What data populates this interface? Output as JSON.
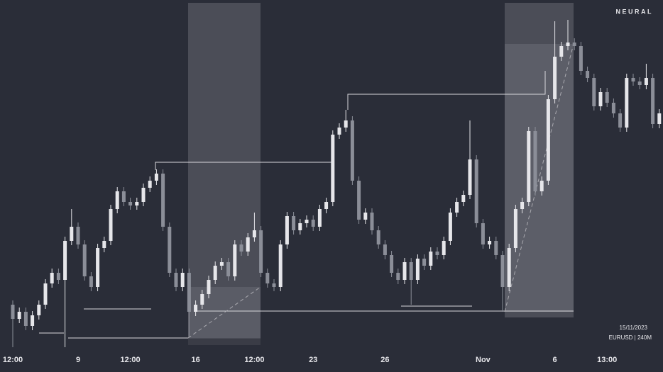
{
  "chart_data": {
    "type": "candlestick",
    "watermark": "NEURAL",
    "date": "15/11/2023",
    "symbol": "EURUSD | 240M",
    "up_color": "#e6e6ea",
    "down_color": "#8b8e98",
    "ylim": [
      1.04,
      1.09
    ],
    "categories": [
      "12:00",
      null,
      null,
      null,
      null,
      null,
      null,
      null,
      null,
      null,
      "9",
      null,
      null,
      null,
      null,
      null,
      null,
      null,
      "12:00",
      null,
      null,
      null,
      null,
      null,
      null,
      null,
      null,
      null,
      "16",
      null,
      null,
      null,
      null,
      null,
      null,
      null,
      null,
      "12:00",
      null,
      null,
      null,
      null,
      null,
      null,
      null,
      null,
      "23",
      null,
      null,
      null,
      null,
      null,
      null,
      null,
      null,
      null,
      null,
      "26",
      null,
      null,
      null,
      null,
      null,
      null,
      null,
      null,
      null,
      null,
      null,
      null,
      null,
      null,
      "Nov",
      null,
      null,
      null,
      null,
      null,
      null,
      null,
      null,
      null,
      null,
      "6",
      null,
      null,
      null,
      null,
      null,
      null,
      null,
      "13:00",
      null,
      null,
      null,
      null,
      null,
      null,
      null,
      null
    ],
    "open": [
      1.047,
      1.045,
      1.046,
      1.044,
      1.0455,
      1.047,
      1.05,
      1.0515,
      1.0505,
      1.056,
      1.058,
      1.0555,
      1.051,
      1.0495,
      1.055,
      1.056,
      1.0605,
      1.063,
      1.0615,
      1.061,
      1.0615,
      1.0635,
      1.0645,
      1.0655,
      1.058,
      1.0515,
      1.0495,
      1.0515,
      1.046,
      1.047,
      1.0485,
      1.0505,
      1.0525,
      1.053,
      1.051,
      1.0555,
      1.0545,
      1.0565,
      1.0575,
      1.0515,
      1.05,
      1.0495,
      1.0555,
      1.0595,
      1.0575,
      1.0585,
      1.059,
      1.058,
      1.0605,
      1.0615,
      1.071,
      1.072,
      1.073,
      1.0645,
      1.059,
      1.06,
      1.0575,
      1.0555,
      1.054,
      1.0515,
      1.0505,
      1.053,
      1.0505,
      1.0535,
      1.0525,
      1.0545,
      1.054,
      1.056,
      1.06,
      1.0615,
      1.0625,
      1.0675,
      1.0585,
      1.0555,
      1.056,
      1.054,
      1.0495,
      1.055,
      1.0605,
      1.0615,
      1.0715,
      1.063,
      1.0645,
      1.076,
      1.082,
      1.0835,
      1.084,
      1.0835,
      1.08,
      1.079,
      1.075,
      1.077,
      1.0755,
      1.074,
      1.072,
      1.079,
      1.0785,
      1.078,
      1.079,
      1.0725
    ],
    "close": [
      1.045,
      1.046,
      1.044,
      1.0455,
      1.047,
      1.05,
      1.0515,
      1.0505,
      1.056,
      1.058,
      1.0555,
      1.051,
      1.0495,
      1.055,
      1.056,
      1.0605,
      1.063,
      1.0615,
      1.061,
      1.0615,
      1.0635,
      1.0645,
      1.0655,
      1.058,
      1.0515,
      1.0495,
      1.0515,
      1.046,
      1.047,
      1.0485,
      1.0505,
      1.0525,
      1.053,
      1.051,
      1.0555,
      1.0545,
      1.0565,
      1.0575,
      1.0515,
      1.05,
      1.0495,
      1.0555,
      1.0595,
      1.0575,
      1.0585,
      1.059,
      1.058,
      1.0605,
      1.0615,
      1.071,
      1.072,
      1.073,
      1.0645,
      1.059,
      1.06,
      1.0575,
      1.0555,
      1.054,
      1.0515,
      1.0505,
      1.053,
      1.0505,
      1.0535,
      1.0525,
      1.0545,
      1.054,
      1.056,
      1.06,
      1.0615,
      1.0625,
      1.0675,
      1.0585,
      1.0555,
      1.056,
      1.054,
      1.0495,
      1.055,
      1.0605,
      1.0615,
      1.0715,
      1.063,
      1.0645,
      1.076,
      1.082,
      1.0835,
      1.084,
      1.0835,
      1.08,
      1.079,
      1.075,
      1.077,
      1.0755,
      1.074,
      1.072,
      1.079,
      1.0785,
      1.078,
      1.079,
      1.0725,
      1.074
    ],
    "high": [
      1.0476,
      1.0466,
      1.0466,
      1.0461,
      1.0476,
      1.0506,
      1.0521,
      1.0521,
      1.0566,
      1.0605,
      1.0586,
      1.0561,
      1.0516,
      1.0556,
      1.0566,
      1.0611,
      1.0636,
      1.0636,
      1.0621,
      1.0621,
      1.0641,
      1.0651,
      1.0661,
      1.0661,
      1.0586,
      1.0521,
      1.0521,
      1.0521,
      1.0476,
      1.0491,
      1.0511,
      1.0531,
      1.0536,
      1.0536,
      1.0561,
      1.0561,
      1.0571,
      1.06,
      1.0581,
      1.0521,
      1.0506,
      1.0561,
      1.0601,
      1.0601,
      1.0591,
      1.0596,
      1.0596,
      1.0611,
      1.0621,
      1.0716,
      1.0726,
      1.0745,
      1.0736,
      1.0651,
      1.0606,
      1.0606,
      1.0581,
      1.0561,
      1.0546,
      1.0521,
      1.0536,
      1.0536,
      1.0541,
      1.0541,
      1.0551,
      1.0551,
      1.0566,
      1.0606,
      1.0621,
      1.0631,
      1.073,
      1.0681,
      1.0591,
      1.0566,
      1.0566,
      1.0546,
      1.0556,
      1.0611,
      1.0621,
      1.0721,
      1.0721,
      1.0651,
      1.0766,
      1.087,
      1.0841,
      1.0872,
      1.0846,
      1.0841,
      1.0806,
      1.0796,
      1.0776,
      1.0776,
      1.0761,
      1.0746,
      1.0796,
      1.0796,
      1.0791,
      1.081,
      1.0796,
      1.0746
    ],
    "low": [
      1.041,
      1.0444,
      1.0434,
      1.0434,
      1.0449,
      1.0464,
      1.0494,
      1.0499,
      1.041,
      1.0554,
      1.0549,
      1.0504,
      1.0489,
      1.0489,
      1.0544,
      1.0554,
      1.0599,
      1.0609,
      1.0604,
      1.0604,
      1.0609,
      1.0629,
      1.0639,
      1.0574,
      1.0509,
      1.0489,
      1.0489,
      1.0425,
      1.0454,
      1.0464,
      1.0479,
      1.0499,
      1.0519,
      1.0504,
      1.0504,
      1.0539,
      1.0539,
      1.0559,
      1.0509,
      1.0494,
      1.0489,
      1.0489,
      1.0549,
      1.0569,
      1.0569,
      1.0579,
      1.0574,
      1.0574,
      1.0599,
      1.0609,
      1.0704,
      1.0714,
      1.0639,
      1.0584,
      1.0584,
      1.0569,
      1.0549,
      1.0534,
      1.0509,
      1.0499,
      1.0499,
      1.047,
      1.0499,
      1.0519,
      1.0519,
      1.0534,
      1.0534,
      1.0554,
      1.0594,
      1.0609,
      1.0619,
      1.0579,
      1.0549,
      1.0549,
      1.0534,
      1.046,
      1.0489,
      1.0544,
      1.0599,
      1.0609,
      1.0624,
      1.0624,
      1.0639,
      1.0754,
      1.0814,
      1.0829,
      1.0829,
      1.0794,
      1.0784,
      1.0744,
      1.0744,
      1.0749,
      1.0734,
      1.0714,
      1.0714,
      1.0779,
      1.0774,
      1.0774,
      1.0719,
      1.0719
    ]
  }
}
